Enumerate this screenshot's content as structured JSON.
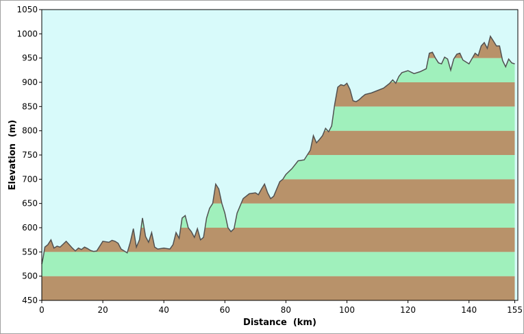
{
  "chart_data": {
    "type": "area",
    "title": "",
    "xlabel": "Distance  (km)",
    "ylabel": "Elevation  (m)",
    "xlim": [
      0,
      156
    ],
    "ylim": [
      450,
      1050
    ],
    "x_ticks": [
      0,
      20,
      40,
      60,
      80,
      100,
      120,
      140,
      155
    ],
    "y_ticks": [
      450,
      500,
      550,
      600,
      650,
      700,
      750,
      800,
      850,
      900,
      950,
      1000,
      1050
    ],
    "grid": false,
    "legend": "none",
    "colors": {
      "sky": "#d8fafa",
      "band_brown": "#b8926a",
      "band_green": "#a0f0bc",
      "profile_line": "#505050",
      "axis": "#000000"
    },
    "band_height_m": 50,
    "series": [
      {
        "x": [
          0,
          0.5,
          1,
          2,
          3,
          4,
          5,
          6,
          7,
          8,
          9,
          10,
          11,
          12,
          13,
          14,
          15,
          16,
          17,
          18,
          20,
          22,
          23,
          24,
          25,
          26,
          27,
          28,
          29,
          30,
          31,
          32,
          33,
          34,
          35,
          36,
          37,
          38,
          40,
          42,
          43,
          44,
          45,
          46,
          47,
          48,
          49,
          50,
          51,
          52,
          53,
          54,
          55,
          56,
          57,
          58,
          59,
          60,
          61,
          62,
          63,
          64,
          66,
          68,
          70,
          71,
          72,
          73,
          74,
          75,
          76,
          77,
          78,
          79,
          80,
          82,
          84,
          86,
          88,
          89,
          90,
          91,
          92,
          93,
          94,
          95,
          96,
          97,
          98,
          99,
          100,
          101,
          102,
          103,
          104,
          105,
          106,
          108,
          110,
          112,
          114,
          115,
          116,
          117,
          118,
          120,
          122,
          124,
          126,
          127,
          128,
          129,
          130,
          131,
          132,
          133,
          134,
          135,
          136,
          137,
          138,
          140,
          142,
          143,
          144,
          145,
          146,
          147,
          148,
          149,
          150,
          151,
          152,
          153,
          154,
          155
        ],
        "y": [
          525,
          540,
          560,
          565,
          575,
          558,
          562,
          560,
          566,
          572,
          565,
          558,
          552,
          558,
          555,
          560,
          557,
          553,
          551,
          552,
          572,
          570,
          574,
          572,
          568,
          556,
          552,
          548,
          570,
          598,
          560,
          575,
          620,
          582,
          570,
          590,
          560,
          556,
          558,
          556,
          565,
          590,
          578,
          620,
          625,
          600,
          592,
          580,
          598,
          575,
          580,
          620,
          640,
          650,
          690,
          680,
          650,
          630,
          600,
          592,
          598,
          630,
          660,
          670,
          672,
          668,
          680,
          690,
          672,
          660,
          665,
          680,
          695,
          700,
          710,
          722,
          738,
          740,
          760,
          790,
          775,
          782,
          790,
          805,
          798,
          810,
          855,
          890,
          895,
          893,
          898,
          885,
          862,
          860,
          864,
          870,
          875,
          878,
          883,
          888,
          898,
          905,
          898,
          912,
          920,
          924,
          918,
          922,
          928,
          960,
          962,
          950,
          940,
          938,
          952,
          948,
          925,
          948,
          958,
          960,
          946,
          938,
          960,
          955,
          975,
          982,
          970,
          995,
          985,
          975,
          975,
          945,
          932,
          948,
          940,
          938
        ]
      }
    ]
  }
}
